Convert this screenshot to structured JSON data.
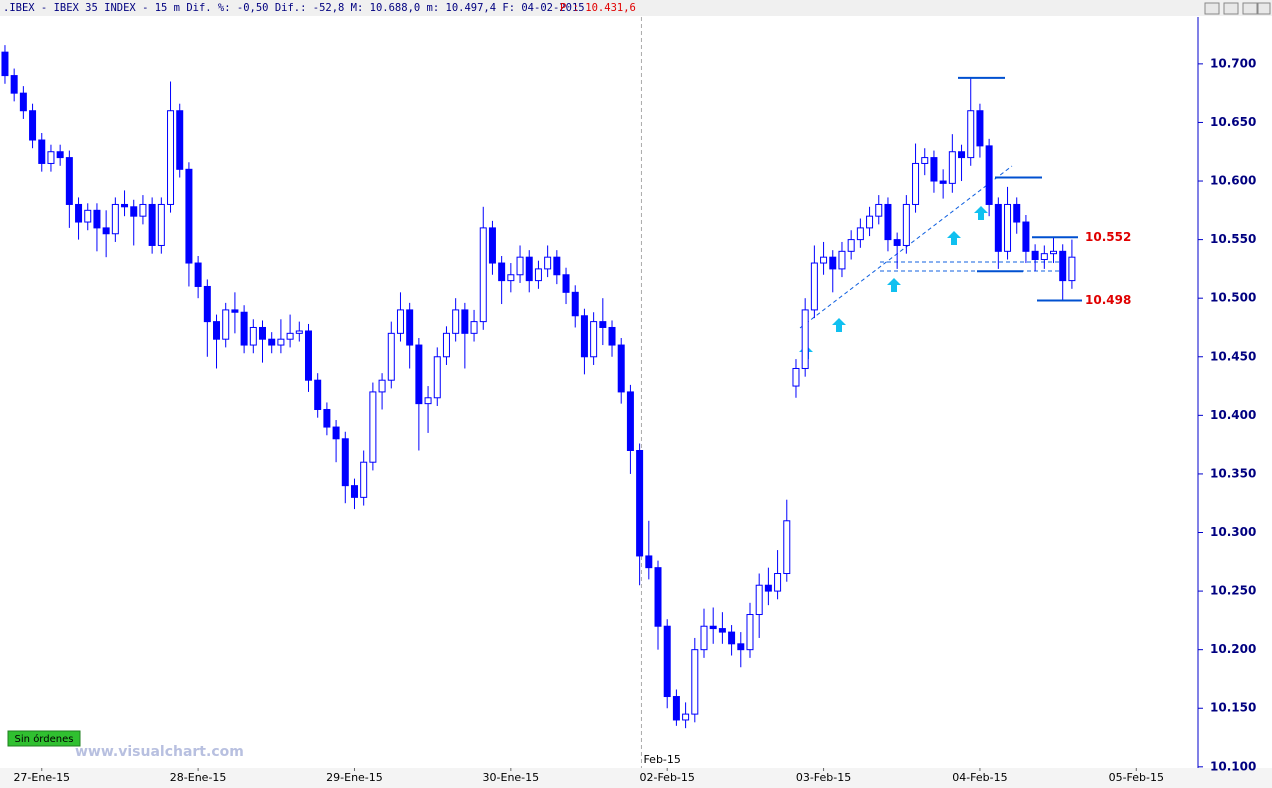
{
  "chart_data": {
    "type": "candlestick",
    "title": ".IBEX - IBEX 35 INDEX -  15 m Dif. %: -0,50 Dif.: -52,8 M: 10.688,0 m: 10.497,4 F: 04-02-2015",
    "subtitle": "P : 10.431,6",
    "up_color": "#ffffff",
    "down_color": "#0000ff",
    "ylim": [
      10099,
      10740
    ],
    "yticks": [
      {
        "value": 10100,
        "label": "10.100"
      },
      {
        "value": 10150,
        "label": "10.150"
      },
      {
        "value": 10200,
        "label": "10.200"
      },
      {
        "value": 10250,
        "label": "10.250"
      },
      {
        "value": 10300,
        "label": "10.300"
      },
      {
        "value": 10350,
        "label": "10.350"
      },
      {
        "value": 10400,
        "label": "10.400"
      },
      {
        "value": 10450,
        "label": "10.450"
      },
      {
        "value": 10500,
        "label": "10.500"
      },
      {
        "value": 10550,
        "label": "10.550"
      },
      {
        "value": 10600,
        "label": "10.600"
      },
      {
        "value": 10650,
        "label": "10.650"
      },
      {
        "value": 10700,
        "label": "10.700"
      }
    ],
    "xlim": [
      -0.54,
      129.6
    ],
    "xticks": [
      {
        "value": 4,
        "label": "27-Ene-15"
      },
      {
        "value": 21,
        "label": "28-Ene-15"
      },
      {
        "value": 38,
        "label": "29-Ene-15"
      },
      {
        "value": 55,
        "label": "30-Ene-15"
      },
      {
        "value": 72,
        "label": "02-Feb-15"
      },
      {
        "value": 89,
        "label": "03-Feb-15"
      },
      {
        "value": 106,
        "label": "04-Feb-15"
      },
      {
        "value": 123,
        "label": "05-Feb-15"
      }
    ],
    "month_marker": {
      "value": 69.2,
      "label": "Feb-15"
    },
    "levels": [
      10688,
      10603,
      10552,
      10523,
      10498
    ],
    "level_labels": [
      {
        "value": 10552,
        "label": "10.552"
      },
      {
        "value": 10498,
        "label": "10.498"
      }
    ],
    "status": "Sin órdenes",
    "watermark": "www.visualchart.com",
    "candles": [
      [
        10710,
        10716,
        10683,
        10690
      ],
      [
        10690,
        10696,
        10668,
        10675
      ],
      [
        10675,
        10681,
        10653,
        10660
      ],
      [
        10660,
        10666,
        10628,
        10635
      ],
      [
        10635,
        10641,
        10608,
        10615
      ],
      [
        10615,
        10631,
        10608,
        10625
      ],
      [
        10625,
        10631,
        10613,
        10620
      ],
      [
        10620,
        10626,
        10560,
        10580
      ],
      [
        10580,
        10586,
        10550,
        10565
      ],
      [
        10565,
        10581,
        10558,
        10575
      ],
      [
        10575,
        10581,
        10540,
        10560
      ],
      [
        10560,
        10575,
        10535,
        10555
      ],
      [
        10555,
        10586,
        10548,
        10580
      ],
      [
        10580,
        10592,
        10570,
        10578
      ],
      [
        10578,
        10584,
        10545,
        10570
      ],
      [
        10570,
        10588,
        10563,
        10580
      ],
      [
        10580,
        10586,
        10538,
        10545
      ],
      [
        10545,
        10586,
        10538,
        10580
      ],
      [
        10580,
        10685,
        10573,
        10660
      ],
      [
        10660,
        10666,
        10603,
        10610
      ],
      [
        10610,
        10616,
        10510,
        10530
      ],
      [
        10530,
        10536,
        10500,
        10510
      ],
      [
        10510,
        10516,
        10450,
        10480
      ],
      [
        10480,
        10486,
        10440,
        10465
      ],
      [
        10465,
        10496,
        10458,
        10490
      ],
      [
        10490,
        10505,
        10470,
        10488
      ],
      [
        10488,
        10494,
        10453,
        10460
      ],
      [
        10460,
        10482,
        10453,
        10475
      ],
      [
        10475,
        10481,
        10445,
        10465
      ],
      [
        10465,
        10471,
        10453,
        10460
      ],
      [
        10460,
        10482,
        10453,
        10465
      ],
      [
        10465,
        10486,
        10458,
        10470
      ],
      [
        10470,
        10480,
        10463,
        10472
      ],
      [
        10472,
        10478,
        10420,
        10430
      ],
      [
        10430,
        10436,
        10398,
        10405
      ],
      [
        10405,
        10411,
        10383,
        10390
      ],
      [
        10390,
        10396,
        10360,
        10380
      ],
      [
        10380,
        10386,
        10325,
        10340
      ],
      [
        10340,
        10346,
        10320,
        10330
      ],
      [
        10330,
        10370,
        10323,
        10360
      ],
      [
        10360,
        10428,
        10353,
        10420
      ],
      [
        10420,
        10436,
        10405,
        10430
      ],
      [
        10430,
        10480,
        10423,
        10470
      ],
      [
        10470,
        10505,
        10463,
        10490
      ],
      [
        10490,
        10496,
        10440,
        10460
      ],
      [
        10460,
        10466,
        10370,
        10410
      ],
      [
        10410,
        10425,
        10385,
        10415
      ],
      [
        10415,
        10458,
        10408,
        10450
      ],
      [
        10450,
        10476,
        10443,
        10470
      ],
      [
        10470,
        10500,
        10463,
        10490
      ],
      [
        10490,
        10496,
        10440,
        10470
      ],
      [
        10470,
        10490,
        10463,
        10480
      ],
      [
        10480,
        10578,
        10473,
        10560
      ],
      [
        10560,
        10566,
        10520,
        10530
      ],
      [
        10530,
        10536,
        10495,
        10515
      ],
      [
        10515,
        10530,
        10505,
        10520
      ],
      [
        10520,
        10545,
        10513,
        10535
      ],
      [
        10535,
        10541,
        10505,
        10515
      ],
      [
        10515,
        10532,
        10508,
        10525
      ],
      [
        10525,
        10545,
        10518,
        10535
      ],
      [
        10535,
        10541,
        10512,
        10520
      ],
      [
        10520,
        10526,
        10495,
        10505
      ],
      [
        10505,
        10511,
        10475,
        10485
      ],
      [
        10485,
        10491,
        10435,
        10450
      ],
      [
        10450,
        10488,
        10443,
        10480
      ],
      [
        10480,
        10500,
        10460,
        10475
      ],
      [
        10475,
        10481,
        10450,
        10460
      ],
      [
        10460,
        10466,
        10410,
        10420
      ],
      [
        10420,
        10426,
        10350,
        10370
      ],
      [
        10370,
        10376,
        10255,
        10280
      ],
      [
        10280,
        10310,
        10260,
        10270
      ],
      [
        10270,
        10276,
        10200,
        10220
      ],
      [
        10220,
        10226,
        10150,
        10160
      ],
      [
        10160,
        10166,
        10135,
        10140
      ],
      [
        10140,
        10155,
        10133,
        10145
      ],
      [
        10145,
        10210,
        10138,
        10200
      ],
      [
        10200,
        10235,
        10193,
        10220
      ],
      [
        10220,
        10236,
        10205,
        10218
      ],
      [
        10218,
        10232,
        10205,
        10215
      ],
      [
        10215,
        10221,
        10195,
        10205
      ],
      [
        10205,
        10215,
        10185,
        10200
      ],
      [
        10200,
        10240,
        10193,
        10230
      ],
      [
        10230,
        10265,
        10210,
        10255
      ],
      [
        10255,
        10270,
        10238,
        10250
      ],
      [
        10250,
        10285,
        10243,
        10265
      ],
      [
        10265,
        10328,
        10258,
        10310
      ],
      [
        10425,
        10448,
        10415,
        10440
      ],
      [
        10440,
        10500,
        10433,
        10490
      ],
      [
        10490,
        10545,
        10483,
        10530
      ],
      [
        10530,
        10548,
        10520,
        10535
      ],
      [
        10535,
        10541,
        10505,
        10525
      ],
      [
        10525,
        10548,
        10518,
        10540
      ],
      [
        10540,
        10558,
        10533,
        10550
      ],
      [
        10550,
        10568,
        10543,
        10560
      ],
      [
        10560,
        10578,
        10553,
        10570
      ],
      [
        10570,
        10588,
        10563,
        10580
      ],
      [
        10580,
        10586,
        10540,
        10550
      ],
      [
        10550,
        10556,
        10525,
        10545
      ],
      [
        10545,
        10588,
        10538,
        10580
      ],
      [
        10580,
        10632,
        10573,
        10615
      ],
      [
        10615,
        10628,
        10605,
        10620
      ],
      [
        10620,
        10626,
        10590,
        10600
      ],
      [
        10600,
        10610,
        10585,
        10598
      ],
      [
        10598,
        10640,
        10590,
        10625
      ],
      [
        10625,
        10631,
        10600,
        10620
      ],
      [
        10620,
        10688,
        10613,
        10660
      ],
      [
        10660,
        10666,
        10620,
        10630
      ],
      [
        10630,
        10636,
        10570,
        10580
      ],
      [
        10580,
        10586,
        10525,
        10540
      ],
      [
        10540,
        10595,
        10533,
        10580
      ],
      [
        10580,
        10586,
        10555,
        10565
      ],
      [
        10565,
        10571,
        10530,
        10540
      ],
      [
        10540,
        10546,
        10523,
        10533
      ],
      [
        10533,
        10545,
        10525,
        10538
      ],
      [
        10538,
        10552,
        10530,
        10540
      ],
      [
        10540,
        10546,
        10498,
        10515
      ],
      [
        10515,
        10550,
        10508,
        10535
      ]
    ]
  }
}
